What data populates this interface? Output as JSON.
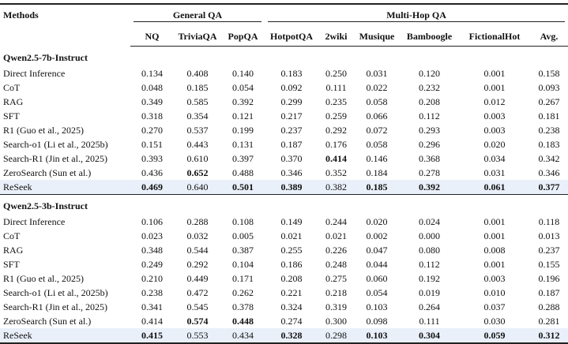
{
  "table": {
    "header": {
      "methods": "Methods",
      "groups": [
        {
          "label": "General QA",
          "columns": [
            "NQ",
            "TriviaQA",
            "PopQA"
          ]
        },
        {
          "label": "Multi-Hop QA",
          "columns": [
            "HotpotQA",
            "2wiki",
            "Musique",
            "Bamboogle",
            "FictionalHot",
            "Avg."
          ]
        }
      ]
    },
    "sections": [
      {
        "title": "Qwen2.5-7b-Instruct",
        "rows": [
          {
            "cells": [
              "Direct Inference",
              "0.134",
              "0.408",
              "0.140",
              "0.183",
              "0.250",
              "0.031",
              "0.120",
              "0.001",
              "0.158"
            ]
          },
          {
            "cells": [
              "CoT",
              "0.048",
              "0.185",
              "0.054",
              "0.092",
              "0.111",
              "0.022",
              "0.232",
              "0.001",
              "0.093"
            ]
          },
          {
            "cells": [
              "RAG",
              "0.349",
              "0.585",
              "0.392",
              "0.299",
              "0.235",
              "0.058",
              "0.208",
              "0.012",
              "0.267"
            ]
          },
          {
            "cells": [
              "SFT",
              "0.318",
              "0.354",
              "0.121",
              "0.217",
              "0.259",
              "0.066",
              "0.112",
              "0.003",
              "0.181"
            ]
          },
          {
            "cells": [
              "R1 (Guo et al., 2025)",
              "0.270",
              "0.537",
              "0.199",
              "0.237",
              "0.292",
              "0.072",
              "0.293",
              "0.003",
              "0.238"
            ]
          },
          {
            "cells": [
              "Search-o1 (Li et al., 2025b)",
              "0.151",
              "0.443",
              "0.131",
              "0.187",
              "0.176",
              "0.058",
              "0.296",
              "0.020",
              "0.183"
            ]
          },
          {
            "cells": [
              "Search-R1 (Jin et al., 2025)",
              "0.393",
              "0.610",
              "0.397",
              "0.370",
              "0.414",
              "0.146",
              "0.368",
              "0.034",
              "0.342"
            ],
            "bold": [
              5
            ]
          },
          {
            "cells": [
              "ZeroSearch (Sun et al.)",
              "0.436",
              "0.652",
              "0.488",
              "0.346",
              "0.352",
              "0.184",
              "0.278",
              "0.031",
              "0.346"
            ],
            "bold": [
              2
            ]
          },
          {
            "cells": [
              "ReSeek",
              "0.469",
              "0.640",
              "0.501",
              "0.389",
              "0.382",
              "0.185",
              "0.392",
              "0.061",
              "0.377"
            ],
            "bold": [
              1,
              3,
              4,
              6,
              7,
              8,
              9
            ],
            "highlight": true
          }
        ]
      },
      {
        "title": "Qwen2.5-3b-Instruct",
        "rows": [
          {
            "cells": [
              "Direct Inference",
              "0.106",
              "0.288",
              "0.108",
              "0.149",
              "0.244",
              "0.020",
              "0.024",
              "0.001",
              "0.118"
            ]
          },
          {
            "cells": [
              "CoT",
              "0.023",
              "0.032",
              "0.005",
              "0.021",
              "0.021",
              "0.002",
              "0.000",
              "0.001",
              "0.013"
            ]
          },
          {
            "cells": [
              "RAG",
              "0.348",
              "0.544",
              "0.387",
              "0.255",
              "0.226",
              "0.047",
              "0.080",
              "0.008",
              "0.237"
            ]
          },
          {
            "cells": [
              "SFT",
              "0.249",
              "0.292",
              "0.104",
              "0.186",
              "0.248",
              "0.044",
              "0.112",
              "0.001",
              "0.155"
            ]
          },
          {
            "cells": [
              "R1 (Guo et al., 2025)",
              "0.210",
              "0.449",
              "0.171",
              "0.208",
              "0.275",
              "0.060",
              "0.192",
              "0.003",
              "0.196"
            ]
          },
          {
            "cells": [
              "Search-o1 (Li et al., 2025b)",
              "0.238",
              "0.472",
              "0.262",
              "0.221",
              "0.218",
              "0.054",
              "0.019",
              "0.010",
              "0.187"
            ]
          },
          {
            "cells": [
              "Search-R1 (Jin et al., 2025)",
              "0.341",
              "0.545",
              "0.378",
              "0.324",
              "0.319",
              "0.103",
              "0.264",
              "0.037",
              "0.288"
            ]
          },
          {
            "cells": [
              "ZeroSearch (Sun et al.)",
              "0.414",
              "0.574",
              "0.448",
              "0.274",
              "0.300",
              "0.098",
              "0.111",
              "0.030",
              "0.281"
            ],
            "bold": [
              2,
              3
            ]
          },
          {
            "cells": [
              "ReSeek",
              "0.415",
              "0.553",
              "0.434",
              "0.328",
              "0.298",
              "0.103",
              "0.304",
              "0.059",
              "0.312"
            ],
            "bold": [
              1,
              4,
              6,
              7,
              8,
              9
            ],
            "highlight": true
          }
        ]
      }
    ]
  }
}
